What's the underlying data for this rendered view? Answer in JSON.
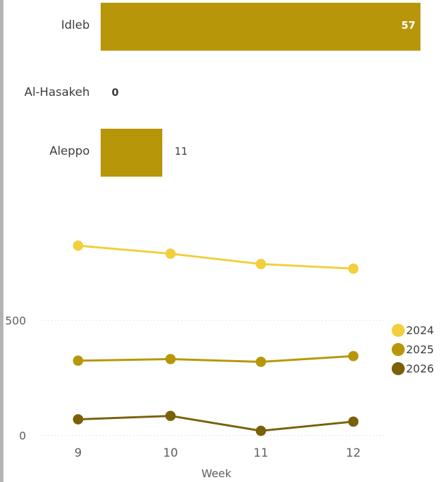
{
  "chart_data": [
    {
      "type": "bar",
      "orientation": "horizontal",
      "categories": [
        "Idleb",
        "Al-Hasakeh",
        "Aleppo"
      ],
      "values": [
        57,
        0,
        11
      ],
      "bar_color": "#b8960a",
      "xlim": [
        0,
        57
      ]
    },
    {
      "type": "line",
      "xlabel": "Week",
      "x": [
        9,
        10,
        11,
        12
      ],
      "ylim": [
        0,
        1000
      ],
      "yticks": [
        0,
        500
      ],
      "grid": true,
      "legend_position": "right",
      "series": [
        {
          "name": "2024",
          "color": "#f2cf3b",
          "values": [
            825,
            790,
            745,
            725
          ]
        },
        {
          "name": "2025",
          "color": "#b8960a",
          "values": [
            325,
            332,
            320,
            345
          ]
        },
        {
          "name": "2026",
          "color": "#7a6008",
          "values": [
            70,
            85,
            20,
            60
          ]
        }
      ]
    }
  ]
}
